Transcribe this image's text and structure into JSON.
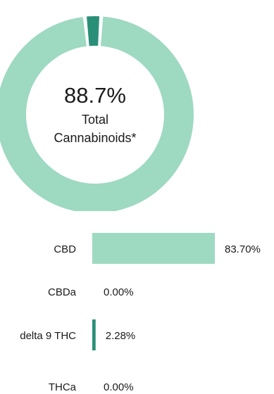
{
  "center": {
    "value": "88.7%",
    "line1": "Total",
    "line2": "Cannabinoids*"
  },
  "colors": {
    "major": "#9ed9c2",
    "minor": "#2a8f78",
    "text": "#1a1a1a"
  },
  "chart_data": [
    {
      "type": "pie",
      "subtype": "donut",
      "title": "",
      "center_text": "88.7% Total Cannabinoids*",
      "slices": [
        {
          "label": "delta 9 THC",
          "value": 2.28,
          "color": "#2a8f78"
        },
        {
          "label": "CBD",
          "value": 83.7,
          "color": "#9ed9c2"
        }
      ]
    },
    {
      "type": "bar",
      "orientation": "horizontal",
      "categories": [
        "CBD",
        "CBDa",
        "delta 9 THC",
        "THCa"
      ],
      "values": [
        83.7,
        0.0,
        2.28,
        0.0
      ],
      "value_labels": [
        "83.70%",
        "0.00%",
        "2.28%",
        "0.00%"
      ],
      "colors": [
        "#9ed9c2",
        "#9ed9c2",
        "#2a8f78",
        "#9ed9c2"
      ],
      "xlabel": "",
      "ylabel": "",
      "xlim": [
        0,
        83.7
      ]
    }
  ]
}
